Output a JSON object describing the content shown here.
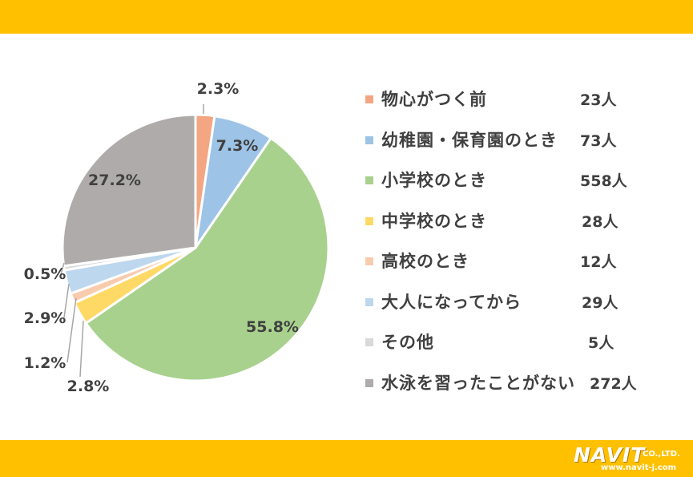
{
  "chart_data": {
    "type": "pie",
    "colors": [
      "#F4A582",
      "#9DC3E6",
      "#A9D18E",
      "#FFD966",
      "#F8CBAD",
      "#BDD7EE",
      "#D9D9D9",
      "#AFABAB"
    ],
    "slices": [
      {
        "label": "物心がつく前",
        "count": "23人",
        "value": 2.3,
        "pct_label": "2.3%"
      },
      {
        "label": "幼稚園・保育園のとき",
        "count": "73人",
        "value": 7.3,
        "pct_label": "7.3%"
      },
      {
        "label": "小学校のとき",
        "count": "558人",
        "value": 55.8,
        "pct_label": "55.8%"
      },
      {
        "label": "中学校のとき",
        "count": "28人",
        "value": 2.8,
        "pct_label": "2.8%"
      },
      {
        "label": "高校のとき",
        "count": "12人",
        "value": 1.2,
        "pct_label": "1.2%"
      },
      {
        "label": "大人になってから",
        "count": "29人",
        "value": 2.9,
        "pct_label": "2.9%"
      },
      {
        "label": "その他",
        "count": "5人",
        "value": 0.5,
        "pct_label": "0.5%"
      },
      {
        "label": "水泳を習ったことがない",
        "count": "272人",
        "value": 27.2,
        "pct_label": "27.2%"
      }
    ],
    "legend_position": "right"
  },
  "logo": {
    "brand": "NAVIT",
    "suffix": "CO.,LTD.",
    "url": "www.navit-j.com"
  }
}
